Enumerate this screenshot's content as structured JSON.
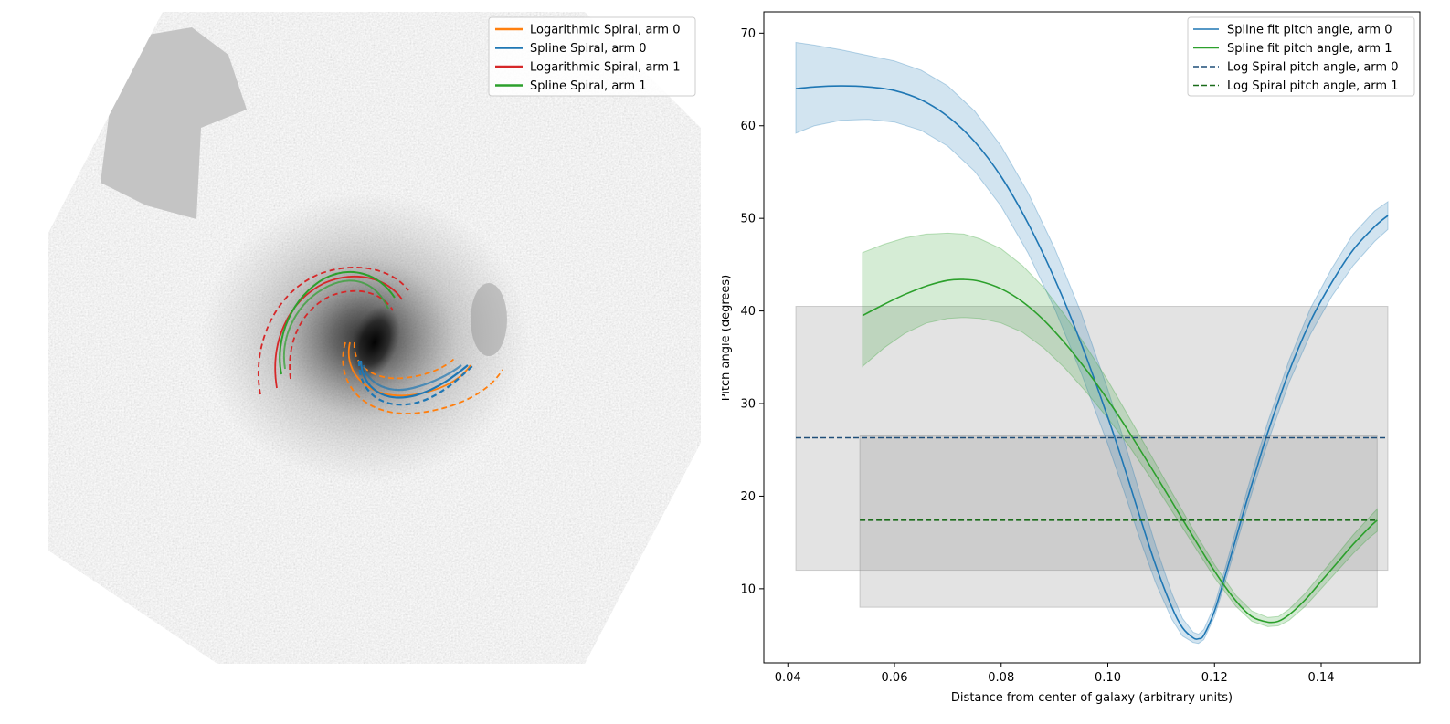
{
  "chart_data": [
    {
      "type": "image",
      "legend": {
        "placement": "top-right",
        "entries": [
          {
            "label": "Logarithmic Spiral, arm 0",
            "color": "#ff7f0e"
          },
          {
            "label": "Spline Spiral, arm 0",
            "color": "#1f77b4"
          },
          {
            "label": "Logarithmic Spiral, arm 1",
            "color": "#d62728"
          },
          {
            "label": "Spline Spiral, arm 1",
            "color": "#2ca02c"
          }
        ]
      },
      "background": "grayscale galaxy image",
      "foreground_object": "galaxy"
    },
    {
      "type": "line",
      "xlabel": "Distance from center of galaxy (arbitrary units)",
      "ylabel": "Pitch angle (degrees)",
      "xlim": [
        0.0355,
        0.1585
      ],
      "ylim": [
        2.0,
        72.3
      ],
      "xticks": [
        0.04,
        0.06,
        0.08,
        0.1,
        0.12,
        0.14
      ],
      "xtick_labels": [
        "0.04",
        "0.06",
        "0.08",
        "0.10",
        "0.12",
        "0.14"
      ],
      "yticks": [
        10,
        20,
        30,
        40,
        50,
        60,
        70
      ],
      "ytick_labels": [
        "10",
        "20",
        "30",
        "40",
        "50",
        "60",
        "70"
      ],
      "grid": false,
      "legend": {
        "placement": "top-right",
        "entries": [
          {
            "label": "Spline fit pitch angle, arm 0",
            "color": "#1f77b4",
            "style": "solid"
          },
          {
            "label": "Spline fit pitch angle, arm 1",
            "color": "#2ca02c",
            "style": "solid"
          },
          {
            "label": "Log Spiral pitch angle, arm 0",
            "color": "#1f4e79",
            "style": "dashed"
          },
          {
            "label": "Log Spiral pitch angle, arm 1",
            "color": "#1a6b1a",
            "style": "dashed"
          }
        ]
      },
      "bands": [
        {
          "name": "arm 0 log spiral range",
          "x": [
            0.0415,
            0.1525
          ],
          "y": [
            12.0,
            40.5
          ]
        },
        {
          "name": "arm 1 log spiral range",
          "x": [
            0.0535,
            0.1505
          ],
          "y": [
            8.0,
            26.5
          ]
        }
      ],
      "series": [
        {
          "name": "Spline fit pitch angle, arm 0",
          "color": "#1f77b4",
          "style": "solid",
          "x": [
            0.0415,
            0.045,
            0.05,
            0.055,
            0.06,
            0.065,
            0.07,
            0.075,
            0.08,
            0.085,
            0.09,
            0.095,
            0.1,
            0.103,
            0.106,
            0.109,
            0.112,
            0.114,
            0.116,
            0.117,
            0.118,
            0.12,
            0.122,
            0.124,
            0.126,
            0.128,
            0.13,
            0.134,
            0.138,
            0.142,
            0.146,
            0.15,
            0.1525
          ],
          "y": [
            64.0,
            64.2,
            64.3,
            64.2,
            63.8,
            62.8,
            61.0,
            58.3,
            54.5,
            49.5,
            43.5,
            36.5,
            28.5,
            23.3,
            17.8,
            12.5,
            8.0,
            5.8,
            4.7,
            4.6,
            5.0,
            7.6,
            11.4,
            15.4,
            19.4,
            23.2,
            26.9,
            33.5,
            38.9,
            43.1,
            46.6,
            49.1,
            50.3
          ],
          "lower": [
            59.2,
            60.0,
            60.6,
            60.7,
            60.4,
            59.5,
            57.8,
            55.1,
            51.3,
            46.3,
            40.3,
            33.3,
            25.6,
            20.6,
            15.4,
            10.6,
            6.7,
            4.9,
            4.2,
            4.1,
            4.5,
            7.0,
            10.7,
            14.6,
            18.5,
            22.2,
            25.8,
            32.3,
            37.5,
            41.6,
            44.9,
            47.5,
            48.8
          ],
          "upper": [
            69.0,
            68.7,
            68.2,
            67.6,
            67.0,
            66.0,
            64.3,
            61.6,
            57.8,
            52.8,
            46.8,
            39.8,
            31.5,
            26.1,
            20.3,
            14.6,
            9.5,
            6.8,
            5.3,
            5.1,
            5.6,
            8.2,
            12.2,
            16.3,
            20.4,
            24.3,
            28.0,
            34.7,
            40.3,
            44.6,
            48.3,
            50.8,
            51.8
          ]
        },
        {
          "name": "Spline fit pitch angle, arm 1",
          "color": "#2ca02c",
          "style": "solid",
          "x": [
            0.054,
            0.058,
            0.062,
            0.066,
            0.07,
            0.073,
            0.076,
            0.08,
            0.084,
            0.088,
            0.092,
            0.096,
            0.1,
            0.104,
            0.108,
            0.112,
            0.116,
            0.12,
            0.124,
            0.127,
            0.13,
            0.132,
            0.134,
            0.137,
            0.14,
            0.143,
            0.146,
            0.149,
            0.1505
          ],
          "y": [
            39.5,
            40.7,
            41.8,
            42.7,
            43.3,
            43.4,
            43.2,
            42.4,
            41.0,
            39.0,
            36.5,
            33.6,
            30.4,
            26.9,
            23.2,
            19.4,
            15.6,
            11.9,
            8.7,
            7.0,
            6.4,
            6.5,
            7.2,
            8.8,
            10.8,
            12.8,
            14.8,
            16.6,
            17.4
          ],
          "lower": [
            34.0,
            36.0,
            37.6,
            38.7,
            39.2,
            39.3,
            39.2,
            38.7,
            37.7,
            36.0,
            33.8,
            31.2,
            28.4,
            25.4,
            22.0,
            18.4,
            14.8,
            11.2,
            8.1,
            6.5,
            5.9,
            6.0,
            6.6,
            8.1,
            10.0,
            11.9,
            13.8,
            15.5,
            16.2
          ],
          "upper": [
            46.3,
            47.2,
            47.9,
            48.3,
            48.4,
            48.3,
            47.8,
            46.7,
            44.9,
            42.5,
            39.5,
            36.1,
            32.5,
            28.5,
            24.5,
            20.4,
            16.4,
            12.6,
            9.3,
            7.6,
            6.9,
            7.0,
            7.8,
            9.5,
            11.6,
            13.7,
            15.8,
            17.7,
            18.6
          ]
        },
        {
          "name": "Log Spiral pitch angle, arm 0",
          "color": "#1f4e79",
          "style": "dashed",
          "x": [
            0.0415,
            0.1525
          ],
          "y": [
            26.3,
            26.3
          ]
        },
        {
          "name": "Log Spiral pitch angle, arm 1",
          "color": "#1a6b1a",
          "style": "dashed",
          "x": [
            0.0535,
            0.1505
          ],
          "y": [
            17.4,
            17.4
          ]
        }
      ]
    }
  ]
}
